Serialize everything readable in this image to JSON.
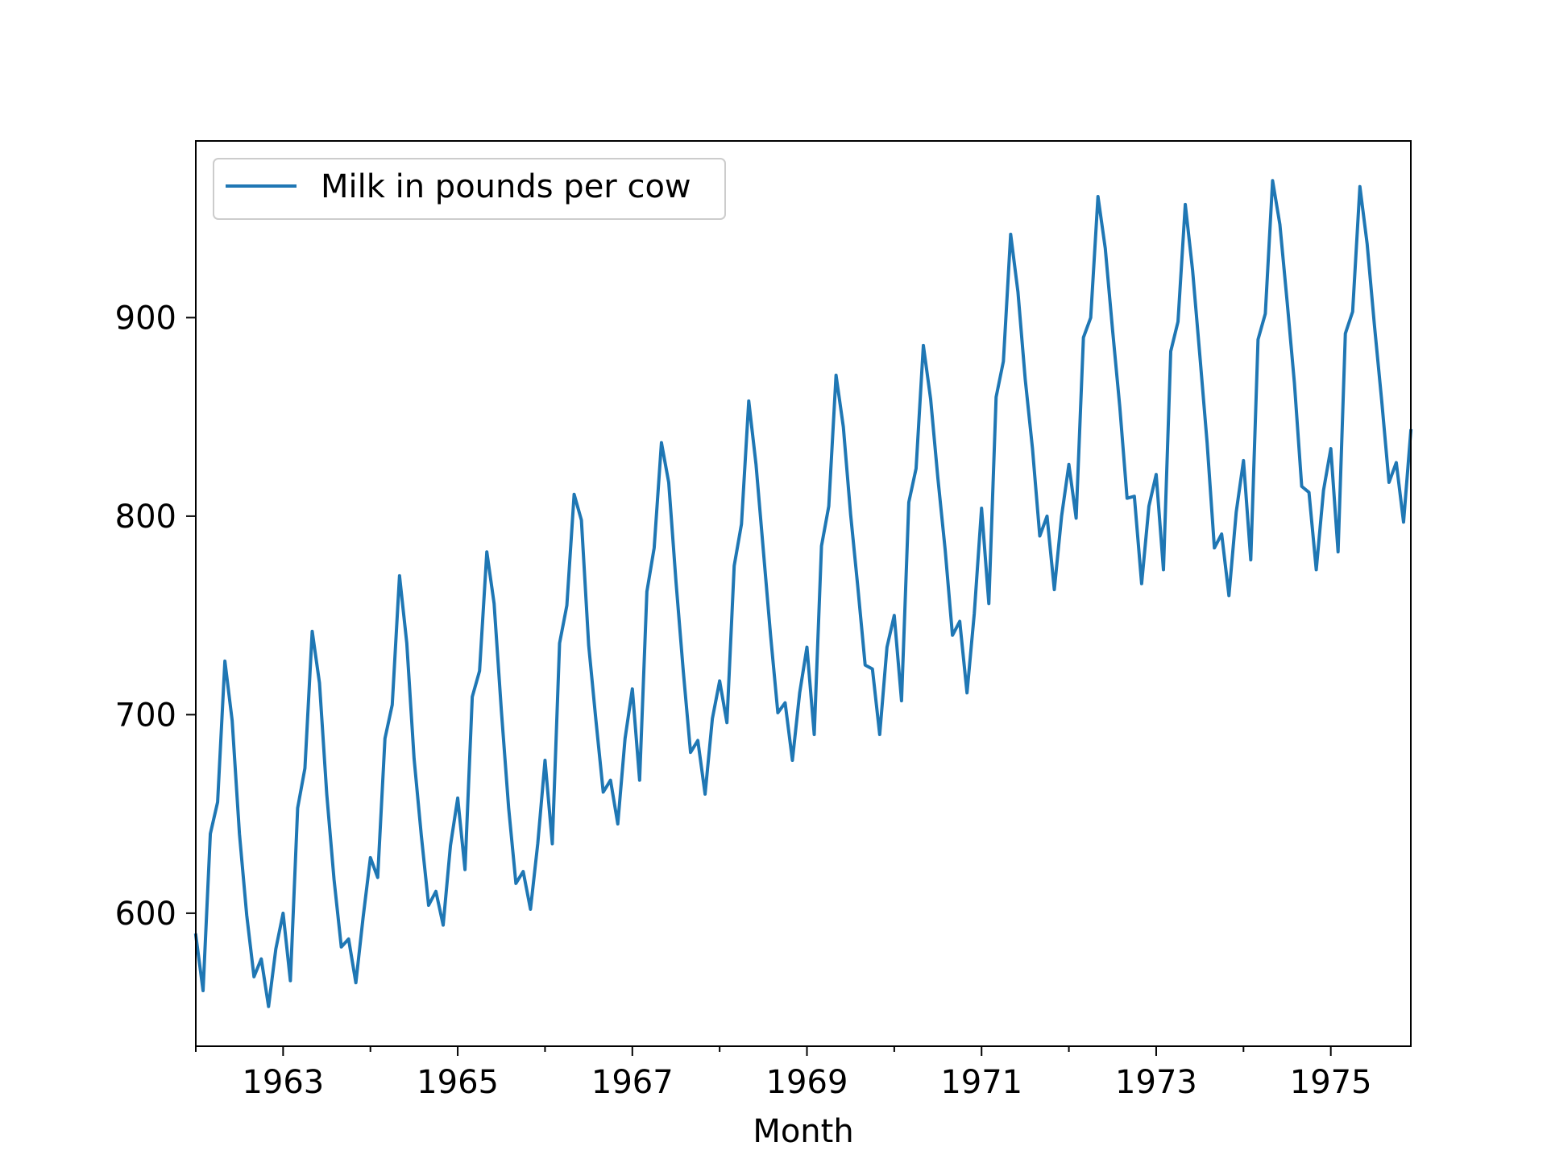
{
  "chart_data": {
    "type": "line",
    "title": "",
    "xlabel": "Month",
    "ylabel": "",
    "x_start": "1962-01",
    "x_end": "1975-12",
    "xlim": [
      "1962-01",
      "1975-12"
    ],
    "ylim": [
      533,
      989
    ],
    "x_tick_labels": [
      "1963",
      "1965",
      "1967",
      "1969",
      "1971",
      "1973",
      "1975"
    ],
    "y_tick_labels": [
      "600",
      "700",
      "800",
      "900"
    ],
    "y_ticks": [
      600,
      700,
      800,
      900
    ],
    "grid": false,
    "legend_position": "upper-left",
    "series": [
      {
        "name": "Milk in pounds per cow",
        "color": "#1f77b4",
        "values": [
          589,
          561,
          640,
          656,
          727,
          697,
          640,
          599,
          568,
          577,
          553,
          582,
          600,
          566,
          653,
          673,
          742,
          716,
          660,
          617,
          583,
          587,
          565,
          598,
          628,
          618,
          688,
          705,
          770,
          736,
          678,
          639,
          604,
          611,
          594,
          634,
          658,
          622,
          709,
          722,
          782,
          756,
          702,
          653,
          615,
          621,
          602,
          635,
          677,
          635,
          736,
          755,
          811,
          798,
          735,
          697,
          661,
          667,
          645,
          688,
          713,
          667,
          762,
          784,
          837,
          817,
          767,
          722,
          681,
          687,
          660,
          698,
          717,
          696,
          775,
          796,
          858,
          826,
          783,
          740,
          701,
          706,
          677,
          711,
          734,
          690,
          785,
          805,
          871,
          845,
          801,
          764,
          725,
          723,
          690,
          734,
          750,
          707,
          807,
          824,
          886,
          859,
          819,
          783,
          740,
          747,
          711,
          751,
          804,
          756,
          860,
          878,
          942,
          913,
          869,
          834,
          790,
          800,
          763,
          800,
          826,
          799,
          890,
          900,
          961,
          935,
          894,
          855,
          809,
          810,
          766,
          805,
          821,
          773,
          883,
          898,
          957,
          924,
          881,
          837,
          784,
          791,
          760,
          802,
          828,
          778,
          889,
          902,
          969,
          947,
          908,
          867,
          815,
          812,
          773,
          813,
          834,
          782,
          892,
          903,
          966,
          937,
          896,
          858,
          817,
          827,
          797,
          843
        ]
      }
    ]
  }
}
